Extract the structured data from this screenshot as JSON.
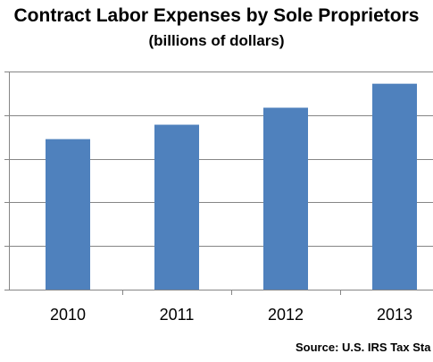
{
  "chart_data": {
    "type": "bar",
    "title": "Contract Labor Expenses by Sole Proprietors",
    "subtitle": "(billions of dollars)",
    "categories": [
      "2010",
      "2011",
      "2012",
      "2013"
    ],
    "values": [
      34.5,
      37.8,
      41.7,
      47.2
    ],
    "ylim": [
      0,
      50
    ],
    "ytick_step": 10,
    "grid": true,
    "bar_color": "#4F81BD",
    "source": "Source: U.S. IRS Tax Sta"
  }
}
